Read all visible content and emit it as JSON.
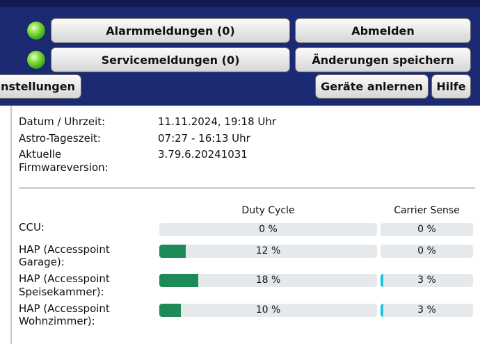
{
  "header": {
    "buttons": {
      "alarms": "Alarmmeldungen (0)",
      "logout": "Abmelden",
      "service": "Servicemeldungen (0)",
      "save": "Änderungen speichern",
      "settings": "instellungen",
      "teach": "Geräte anlernen",
      "help": "Hilfe"
    },
    "led_status": "green"
  },
  "info": {
    "date_label": "Datum / Uhrzeit:",
    "date_value": "11.11.2024, 19:18 Uhr",
    "astro_label": "Astro-Tageszeit:",
    "astro_value": "07:27 - 16:13 Uhr",
    "fw_label_1": "Aktuelle",
    "fw_label_2": "Firmwareversion:",
    "fw_value": "3.79.6.20241031"
  },
  "table": {
    "duty_header": "Duty Cycle",
    "carrier_header": "Carrier Sense",
    "rows": [
      {
        "name_1": "CCU:",
        "name_2": "",
        "duty": 0,
        "duty_text": "0 %",
        "carrier": 0,
        "carrier_text": "0 %"
      },
      {
        "name_1": "HAP (Accesspoint",
        "name_2": "Garage):",
        "duty": 12,
        "duty_text": "12 %",
        "carrier": 0,
        "carrier_text": "0 %"
      },
      {
        "name_1": "HAP (Accesspoint",
        "name_2": "Speisekammer):",
        "duty": 18,
        "duty_text": "18 %",
        "carrier": 3,
        "carrier_text": "3 %"
      },
      {
        "name_1": "HAP (Accesspoint",
        "name_2": "Wohnzimmer):",
        "duty": 10,
        "duty_text": "10 %",
        "carrier": 3,
        "carrier_text": "3 %"
      }
    ]
  },
  "colors": {
    "header_bg": "#1b2a72",
    "duty_fill": "#1e8a57",
    "carrier_fill": "#1fc3d9"
  }
}
